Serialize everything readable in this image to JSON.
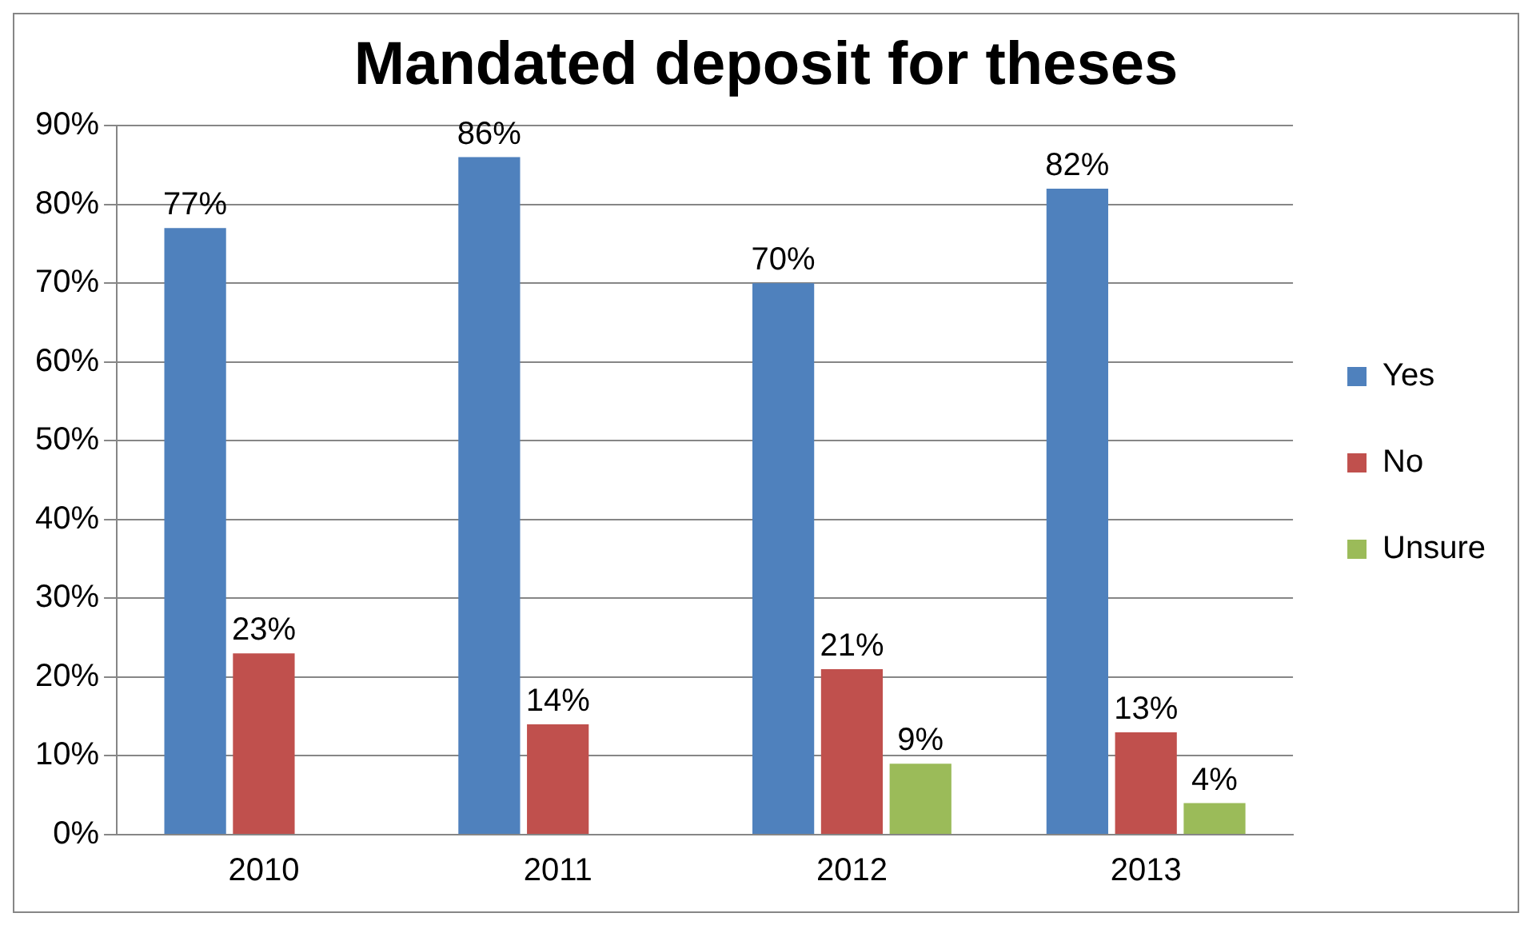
{
  "chart_data": {
    "type": "bar",
    "title": "Mandated deposit for theses",
    "categories": [
      "2010",
      "2011",
      "2012",
      "2013"
    ],
    "series": [
      {
        "name": "Yes",
        "color": "#4f81bd",
        "values": [
          77,
          86,
          70,
          82
        ],
        "value_labels": [
          "77%",
          "86%",
          "70%",
          "82%"
        ]
      },
      {
        "name": "No",
        "color": "#c0504d",
        "values": [
          23,
          14,
          21,
          13
        ],
        "value_labels": [
          "23%",
          "14%",
          "21%",
          "13%"
        ]
      },
      {
        "name": "Unsure",
        "color": "#9bbb59",
        "values": [
          null,
          null,
          9,
          4
        ],
        "value_labels": [
          null,
          null,
          "9%",
          "4%"
        ]
      }
    ],
    "ylim": [
      0,
      90
    ],
    "yticks": [
      {
        "value": 0,
        "label": "0%"
      },
      {
        "value": 10,
        "label": "10%"
      },
      {
        "value": 20,
        "label": "20%"
      },
      {
        "value": 30,
        "label": "30%"
      },
      {
        "value": 40,
        "label": "40%"
      },
      {
        "value": 50,
        "label": "50%"
      },
      {
        "value": 60,
        "label": "60%"
      },
      {
        "value": 70,
        "label": "70%"
      },
      {
        "value": 80,
        "label": "80%"
      },
      {
        "value": 90,
        "label": "90%"
      }
    ],
    "grid": "y",
    "legend": "right"
  }
}
